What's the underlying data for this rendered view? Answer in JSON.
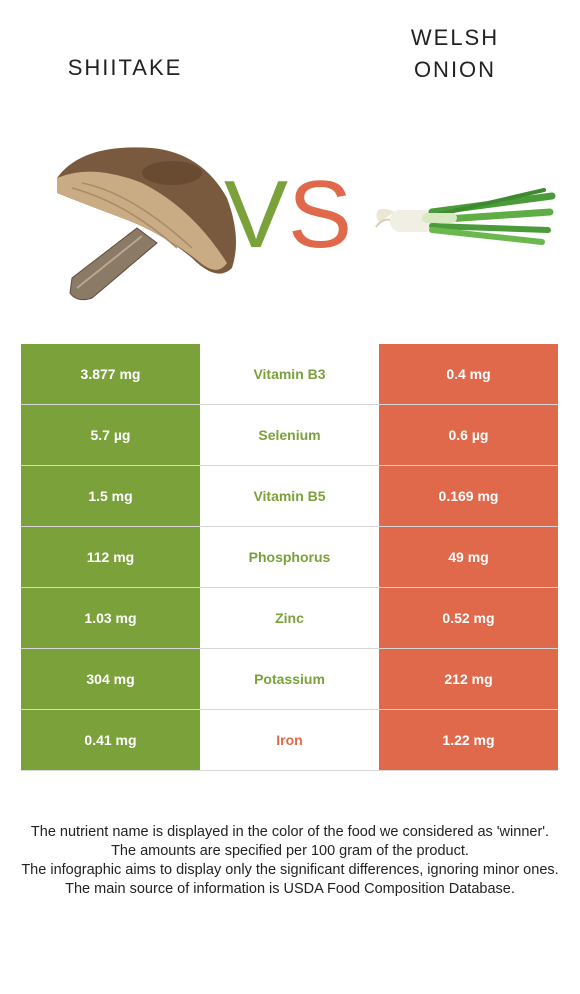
{
  "left_food": {
    "name": "SHIITAKE"
  },
  "right_food": {
    "name": "WELSH\nONION"
  },
  "vs": {
    "v": "V",
    "s": "S"
  },
  "colors": {
    "winner_left": "#7ba13a",
    "winner_right": "#e0694b"
  },
  "rows": [
    {
      "left": "3.877 mg",
      "nutrient": "Vitamin B3",
      "right": "0.4 mg",
      "winner": "left"
    },
    {
      "left": "5.7 µg",
      "nutrient": "Selenium",
      "right": "0.6 µg",
      "winner": "left"
    },
    {
      "left": "1.5 mg",
      "nutrient": "Vitamin B5",
      "right": "0.169 mg",
      "winner": "left"
    },
    {
      "left": "112 mg",
      "nutrient": "Phosphorus",
      "right": "49 mg",
      "winner": "left"
    },
    {
      "left": "1.03 mg",
      "nutrient": "Zinc",
      "right": "0.52 mg",
      "winner": "left"
    },
    {
      "left": "304 mg",
      "nutrient": "Potassium",
      "right": "212 mg",
      "winner": "left"
    },
    {
      "left": "0.41 mg",
      "nutrient": "Iron",
      "right": "1.22 mg",
      "winner": "right"
    }
  ],
  "notes": [
    "The nutrient name is displayed in the color of the food we considered as 'winner'.",
    "The amounts are specified per 100 gram of the product.",
    "The infographic aims to display only the significant differences, ignoring minor ones.",
    "The main source of information is USDA Food Composition Database."
  ]
}
